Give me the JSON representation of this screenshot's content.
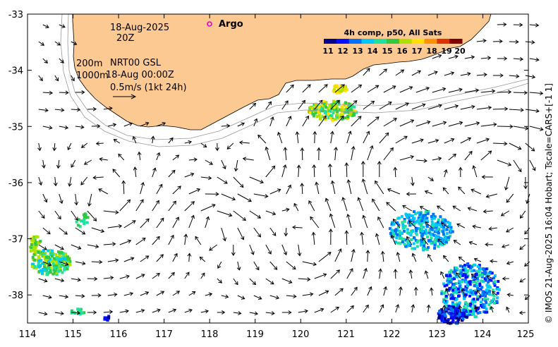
{
  "map": {
    "extent": {
      "lon": [
        114,
        125
      ],
      "lat": [
        -38.5,
        -33
      ]
    },
    "x_ticks": [
      "114",
      "115",
      "116",
      "117",
      "118",
      "119",
      "120",
      "121",
      "122",
      "123",
      "124",
      "125"
    ],
    "y_ticks": [
      "-33",
      "-34",
      "-35",
      "-36",
      "-37",
      "-38"
    ],
    "land_color": "#fcc993",
    "contour_depths": [
      "200m",
      "1000m"
    ]
  },
  "annotations": {
    "date": "18-Aug-2025",
    "time": "20Z",
    "depth_200": "200m",
    "source": "NRT00 GSL",
    "depth_1000": "1000m",
    "source_time": "18-Aug 00:00Z",
    "scale_label": "0.5m/s (1kt 24h)"
  },
  "argo": {
    "label": "Argo",
    "color": "#e100c8"
  },
  "colorbar": {
    "title": "4h comp, p50, All Sats",
    "ticks": [
      "11",
      "12",
      "13",
      "14",
      "15",
      "16",
      "17",
      "18",
      "19",
      "20"
    ],
    "colors": [
      "#00008f",
      "#0010ff",
      "#0070ff",
      "#00c8ff",
      "#20e0a0",
      "#30c840",
      "#b0e000",
      "#ffe000",
      "#ff9000",
      "#e03000",
      "#800000"
    ]
  },
  "credit": "© IMOS 21-Aug-2025 16:04 Hobart; Tscale=CARS+[-1 1]"
}
